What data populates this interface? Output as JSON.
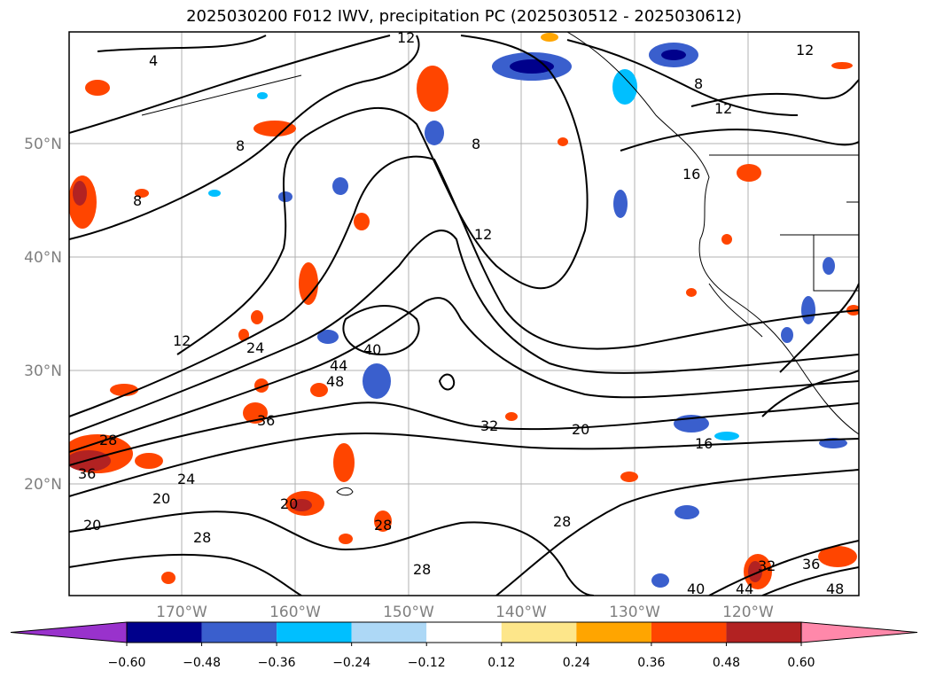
{
  "title": "2025030200 F012 IWV, precipitation PC (2025030512 - 2025030612)",
  "lat_labels": [
    "50°N",
    "40°N",
    "30°N",
    "20°N"
  ],
  "lon_labels": [
    "170°W",
    "160°W",
    "150°W",
    "140°W",
    "130°W",
    "120°W"
  ],
  "contour_labels": [
    "4",
    "8",
    "8",
    "8",
    "8",
    "12",
    "12",
    "12",
    "12",
    "12",
    "16",
    "16",
    "20",
    "20",
    "20",
    "20",
    "24",
    "24",
    "28",
    "28",
    "28",
    "28",
    "28",
    "32",
    "32",
    "36",
    "36",
    "36",
    "40",
    "40",
    "44",
    "44",
    "48",
    "48"
  ],
  "colorbar": {
    "ticks": [
      "−0.60",
      "−0.48",
      "−0.36",
      "−0.24",
      "−0.12",
      "0.12",
      "0.24",
      "0.36",
      "0.48",
      "0.60"
    ],
    "colors": [
      "#9932cc",
      "#00008b",
      "#3a5fcd",
      "#00bfff",
      "#add8f6",
      "#ffffff",
      "#fde68a",
      "#ffa500",
      "#ff4500",
      "#b22222",
      "#ff88aa"
    ]
  }
}
